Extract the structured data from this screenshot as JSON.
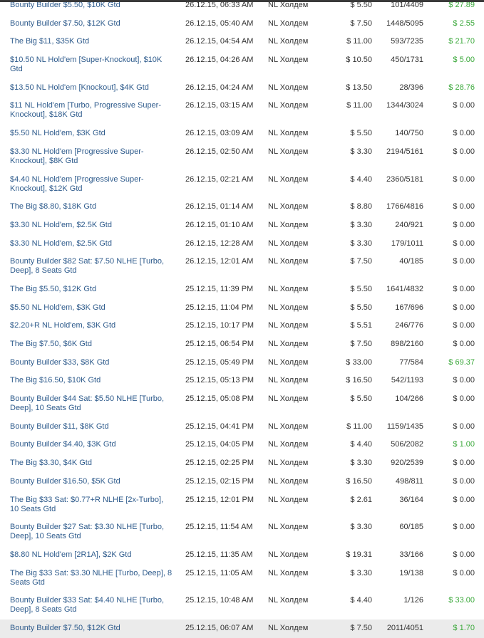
{
  "colors": {
    "link": "#2e5b8c",
    "win": "#3aa83a",
    "selected_row": "#ebebeb"
  },
  "rows": [
    {
      "name": "Bounty Builder $5.50, $10K Gtd",
      "date": "26.12.15, 06:33 AM",
      "game": "NL Холдем",
      "buyin": "$ 5.50",
      "entrants": "101/4409",
      "prize": "$ 27.89",
      "win": true
    },
    {
      "name": "Bounty Builder $7.50, $12K Gtd",
      "date": "26.12.15, 05:40 AM",
      "game": "NL Холдем",
      "buyin": "$ 7.50",
      "entrants": "1448/5095",
      "prize": "$ 2.55",
      "win": true
    },
    {
      "name": "The Big $11, $35K Gtd",
      "date": "26.12.15, 04:54 AM",
      "game": "NL Холдем",
      "buyin": "$ 11.00",
      "entrants": "593/7235",
      "prize": "$ 21.70",
      "win": true
    },
    {
      "name": "$10.50 NL Hold'em [Super-Knockout], $10K Gtd",
      "date": "26.12.15, 04:26 AM",
      "game": "NL Холдем",
      "buyin": "$ 10.50",
      "entrants": "450/1731",
      "prize": "$ 5.00",
      "win": true
    },
    {
      "name": "$13.50 NL Hold'em [Knockout], $4K Gtd",
      "date": "26.12.15, 04:24 AM",
      "game": "NL Холдем",
      "buyin": "$ 13.50",
      "entrants": "28/396",
      "prize": "$ 28.76",
      "win": true
    },
    {
      "name": "$11 NL Hold'em [Turbo, Progressive Super-Knockout], $18K Gtd",
      "date": "26.12.15, 03:15 AM",
      "game": "NL Холдем",
      "buyin": "$ 11.00",
      "entrants": "1344/3024",
      "prize": "$ 0.00",
      "win": false
    },
    {
      "name": "$5.50 NL Hold'em, $3K Gtd",
      "date": "26.12.15, 03:09 AM",
      "game": "NL Холдем",
      "buyin": "$ 5.50",
      "entrants": "140/750",
      "prize": "$ 0.00",
      "win": false
    },
    {
      "name": "$3.30 NL Hold'em [Progressive Super-Knockout], $8K Gtd",
      "date": "26.12.15, 02:50 AM",
      "game": "NL Холдем",
      "buyin": "$ 3.30",
      "entrants": "2194/5161",
      "prize": "$ 0.00",
      "win": false
    },
    {
      "name": "$4.40 NL Hold'em [Progressive Super-Knockout], $12K Gtd",
      "date": "26.12.15, 02:21 AM",
      "game": "NL Холдем",
      "buyin": "$ 4.40",
      "entrants": "2360/5181",
      "prize": "$ 0.00",
      "win": false
    },
    {
      "name": "The Big $8.80, $18K Gtd",
      "date": "26.12.15, 01:14 AM",
      "game": "NL Холдем",
      "buyin": "$ 8.80",
      "entrants": "1766/4816",
      "prize": "$ 0.00",
      "win": false
    },
    {
      "name": "$3.30 NL Hold'em, $2.5K Gtd",
      "date": "26.12.15, 01:10 AM",
      "game": "NL Холдем",
      "buyin": "$ 3.30",
      "entrants": "240/921",
      "prize": "$ 0.00",
      "win": false
    },
    {
      "name": "$3.30 NL Hold'em, $2.5K Gtd",
      "date": "26.12.15, 12:28 AM",
      "game": "NL Холдем",
      "buyin": "$ 3.30",
      "entrants": "179/1011",
      "prize": "$ 0.00",
      "win": false
    },
    {
      "name": "Bounty Builder $82 Sat: $7.50 NLHE [Turbo, Deep], 8 Seats Gtd",
      "date": "26.12.15, 12:01 AM",
      "game": "NL Холдем",
      "buyin": "$ 7.50",
      "entrants": "40/185",
      "prize": "$ 0.00",
      "win": false
    },
    {
      "name": "The Big $5.50, $12K Gtd",
      "date": "25.12.15, 11:39 PM",
      "game": "NL Холдем",
      "buyin": "$ 5.50",
      "entrants": "1641/4832",
      "prize": "$ 0.00",
      "win": false
    },
    {
      "name": "$5.50 NL Hold'em, $3K Gtd",
      "date": "25.12.15, 11:04 PM",
      "game": "NL Холдем",
      "buyin": "$ 5.50",
      "entrants": "167/696",
      "prize": "$ 0.00",
      "win": false
    },
    {
      "name": "$2.20+R NL Hold'em, $3K Gtd",
      "date": "25.12.15, 10:17 PM",
      "game": "NL Холдем",
      "buyin": "$ 5.51",
      "entrants": "246/776",
      "prize": "$ 0.00",
      "win": false
    },
    {
      "name": "The Big $7.50, $6K Gtd",
      "date": "25.12.15, 06:54 PM",
      "game": "NL Холдем",
      "buyin": "$ 7.50",
      "entrants": "898/2160",
      "prize": "$ 0.00",
      "win": false
    },
    {
      "name": "Bounty Builder $33, $8K Gtd",
      "date": "25.12.15, 05:49 PM",
      "game": "NL Холдем",
      "buyin": "$ 33.00",
      "entrants": "77/584",
      "prize": "$ 69.37",
      "win": true
    },
    {
      "name": "The Big $16.50, $10K Gtd",
      "date": "25.12.15, 05:13 PM",
      "game": "NL Холдем",
      "buyin": "$ 16.50",
      "entrants": "542/1193",
      "prize": "$ 0.00",
      "win": false
    },
    {
      "name": "Bounty Builder $44 Sat: $5.50 NLHE [Turbo, Deep], 10 Seats Gtd",
      "date": "25.12.15, 05:08 PM",
      "game": "NL Холдем",
      "buyin": "$ 5.50",
      "entrants": "104/266",
      "prize": "$ 0.00",
      "win": false
    },
    {
      "name": "Bounty Builder $11, $8K Gtd",
      "date": "25.12.15, 04:41 PM",
      "game": "NL Холдем",
      "buyin": "$ 11.00",
      "entrants": "1159/1435",
      "prize": "$ 0.00",
      "win": false
    },
    {
      "name": "Bounty Builder $4.40, $3K Gtd",
      "date": "25.12.15, 04:05 PM",
      "game": "NL Холдем",
      "buyin": "$ 4.40",
      "entrants": "506/2082",
      "prize": "$ 1.00",
      "win": true
    },
    {
      "name": "The Big $3.30, $4K Gtd",
      "date": "25.12.15, 02:25 PM",
      "game": "NL Холдем",
      "buyin": "$ 3.30",
      "entrants": "920/2539",
      "prize": "$ 0.00",
      "win": false
    },
    {
      "name": "Bounty Builder $16.50, $5K Gtd",
      "date": "25.12.15, 02:15 PM",
      "game": "NL Холдем",
      "buyin": "$ 16.50",
      "entrants": "498/811",
      "prize": "$ 0.00",
      "win": false
    },
    {
      "name": "The Big $33 Sat: $0.77+R NLHE [2x-Turbo], 10 Seats Gtd",
      "date": "25.12.15, 12:01 PM",
      "game": "NL Холдем",
      "buyin": "$ 2.61",
      "entrants": "36/164",
      "prize": "$ 0.00",
      "win": false
    },
    {
      "name": "Bounty Builder $27 Sat: $3.30 NLHE [Turbo, Deep], 10 Seats Gtd",
      "date": "25.12.15, 11:54 AM",
      "game": "NL Холдем",
      "buyin": "$ 3.30",
      "entrants": "60/185",
      "prize": "$ 0.00",
      "win": false
    },
    {
      "name": "$8.80 NL Hold'em [2R1A], $2K Gtd",
      "date": "25.12.15, 11:35 AM",
      "game": "NL Холдем",
      "buyin": "$ 19.31",
      "entrants": "33/166",
      "prize": "$ 0.00",
      "win": false
    },
    {
      "name": "The Big $33 Sat: $3.30 NLHE [Turbo, Deep], 8 Seats Gtd",
      "date": "25.12.15, 11:05 AM",
      "game": "NL Холдем",
      "buyin": "$ 3.30",
      "entrants": "19/138",
      "prize": "$ 0.00",
      "win": false
    },
    {
      "name": "Bounty Builder $33 Sat: $4.40 NLHE [Turbo, Deep], 8 Seats Gtd",
      "date": "25.12.15, 10:48 AM",
      "game": "NL Холдем",
      "buyin": "$ 4.40",
      "entrants": "1/126",
      "prize": "$ 33.00",
      "win": true
    },
    {
      "name": "Bounty Builder $7.50, $12K Gtd",
      "date": "25.12.15, 06:07 AM",
      "game": "NL Холдем",
      "buyin": "$ 7.50",
      "entrants": "2011/4051",
      "prize": "$ 1.70",
      "win": true,
      "selected": true,
      "check": "✓"
    }
  ]
}
